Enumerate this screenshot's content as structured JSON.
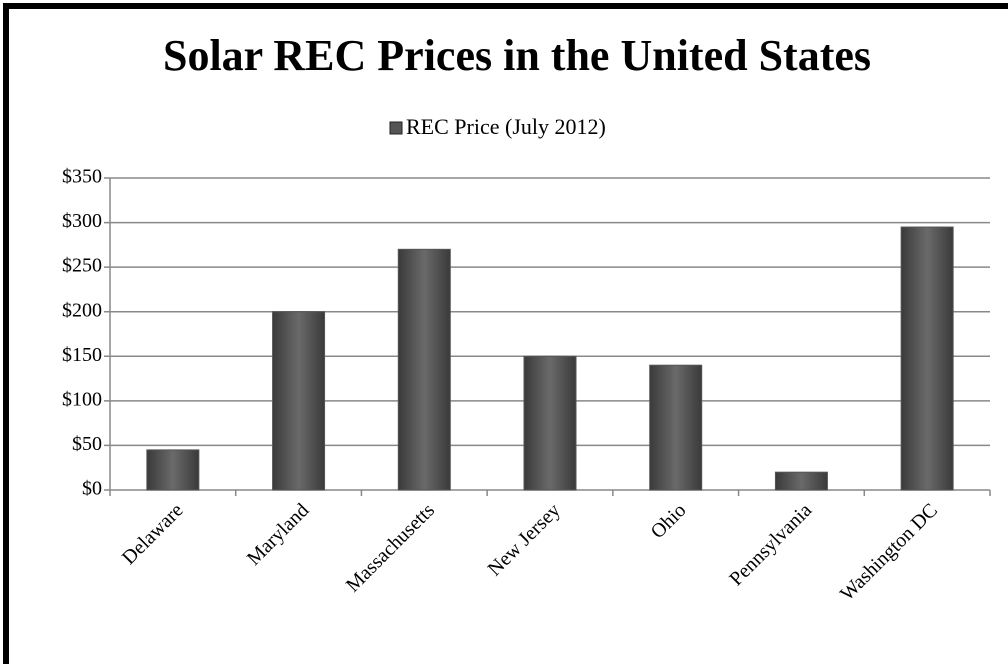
{
  "chart_data": {
    "type": "bar",
    "title": "Solar REC Prices in the United States",
    "series": [
      {
        "name": "REC Price (July 2012)",
        "color": "#555555",
        "values": [
          45,
          200,
          270,
          150,
          140,
          20,
          295
        ]
      }
    ],
    "categories": [
      "Delaware",
      "Maryland",
      "Massachusetts",
      "New Jersey",
      "Ohio",
      "Pennsylvania",
      "Washington DC"
    ],
    "ylim": [
      0,
      350
    ],
    "yticks": [
      {
        "value": 0,
        "label": "$0"
      },
      {
        "value": 50,
        "label": "$50"
      },
      {
        "value": 100,
        "label": "$100"
      },
      {
        "value": 150,
        "label": "$150"
      },
      {
        "value": 200,
        "label": "$200"
      },
      {
        "value": 250,
        "label": "$250"
      },
      {
        "value": 300,
        "label": "$300"
      },
      {
        "value": 350,
        "label": "$350"
      }
    ],
    "grid": true,
    "legend": "top"
  }
}
